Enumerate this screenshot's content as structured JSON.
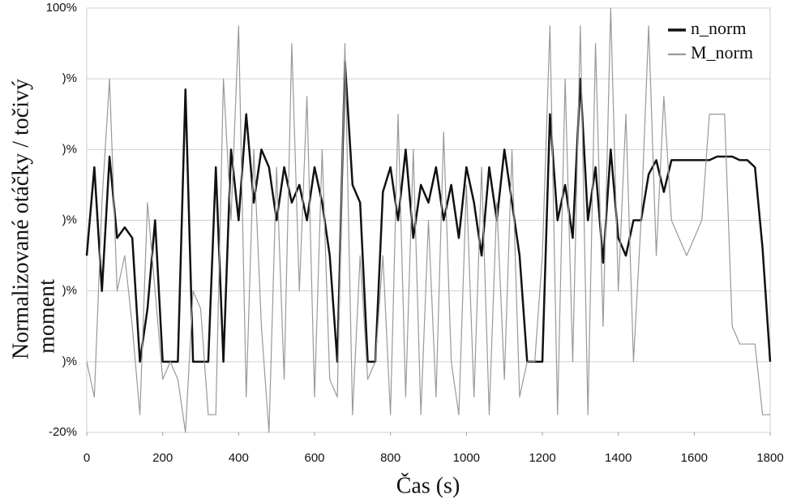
{
  "chart_data": {
    "type": "line",
    "x_label": "Čas (s)",
    "y_label": [
      "Normalizované otáčky / točivý",
      "moment"
    ],
    "x": [
      0,
      20,
      40,
      60,
      80,
      100,
      120,
      140,
      160,
      180,
      200,
      220,
      240,
      260,
      280,
      300,
      320,
      340,
      360,
      380,
      400,
      420,
      440,
      460,
      480,
      500,
      520,
      540,
      560,
      580,
      600,
      620,
      640,
      660,
      680,
      700,
      720,
      740,
      760,
      780,
      800,
      820,
      840,
      860,
      880,
      900,
      920,
      940,
      960,
      980,
      1000,
      1020,
      1040,
      1060,
      1080,
      1100,
      1120,
      1140,
      1160,
      1180,
      1200,
      1220,
      1240,
      1260,
      1280,
      1300,
      1320,
      1340,
      1360,
      1380,
      1400,
      1420,
      1440,
      1460,
      1480,
      1500,
      1520,
      1540,
      1560,
      1580,
      1600,
      1620,
      1640,
      1660,
      1680,
      1700,
      1720,
      1740,
      1760,
      1780,
      1800
    ],
    "series": [
      {
        "name": "n_norm",
        "color": "#111111",
        "width": 2.5,
        "values": [
          30,
          55,
          20,
          58,
          35,
          38,
          35,
          0,
          15,
          40,
          0,
          0,
          0,
          77,
          0,
          0,
          0,
          55,
          0,
          60,
          40,
          70,
          45,
          60,
          55,
          40,
          55,
          45,
          50,
          40,
          55,
          45,
          30,
          0,
          85,
          50,
          45,
          0,
          0,
          48,
          55,
          40,
          60,
          35,
          50,
          45,
          55,
          40,
          50,
          35,
          55,
          45,
          30,
          55,
          40,
          60,
          45,
          30,
          0,
          0,
          0,
          70,
          40,
          50,
          35,
          80,
          40,
          55,
          28,
          60,
          35,
          30,
          40,
          40,
          53,
          57,
          48,
          57,
          57,
          57,
          57,
          57,
          57,
          58,
          58,
          58,
          57,
          57,
          55,
          32,
          0
        ]
      },
      {
        "name": "M_norm",
        "color": "#999999",
        "width": 1.2,
        "values": [
          0,
          -10,
          45,
          80,
          20,
          30,
          10,
          -15,
          45,
          20,
          -5,
          0,
          -5,
          -20,
          20,
          15,
          -15,
          -15,
          80,
          40,
          95,
          -10,
          60,
          10,
          -20,
          55,
          -5,
          90,
          20,
          75,
          -10,
          60,
          -5,
          -10,
          90,
          -15,
          30,
          -5,
          0,
          30,
          -15,
          70,
          -10,
          60,
          -15,
          40,
          -10,
          65,
          0,
          -15,
          50,
          -10,
          55,
          -15,
          45,
          -5,
          60,
          -10,
          0,
          0,
          30,
          95,
          -15,
          80,
          0,
          95,
          -15,
          90,
          10,
          100,
          20,
          70,
          0,
          40,
          95,
          30,
          75,
          40,
          35,
          30,
          35,
          40,
          70,
          70,
          70,
          10,
          5,
          5,
          5,
          -15,
          -15
        ]
      }
    ],
    "xlim": [
      0,
      1800
    ],
    "xticks": [
      0,
      200,
      400,
      600,
      800,
      1000,
      1200,
      1400,
      1600,
      1800
    ],
    "ylim": [
      -20,
      100
    ],
    "yticks": [
      {
        "value": -20,
        "label": "-20%"
      },
      {
        "value": 0,
        "label": ")%"
      },
      {
        "value": 20,
        "label": ")%"
      },
      {
        "value": 40,
        "label": ")%"
      },
      {
        "value": 60,
        "label": ")%"
      },
      {
        "value": 80,
        "label": ")%"
      },
      {
        "value": 100,
        "label": "100%"
      }
    ],
    "grid": true,
    "legend": "top-right"
  }
}
